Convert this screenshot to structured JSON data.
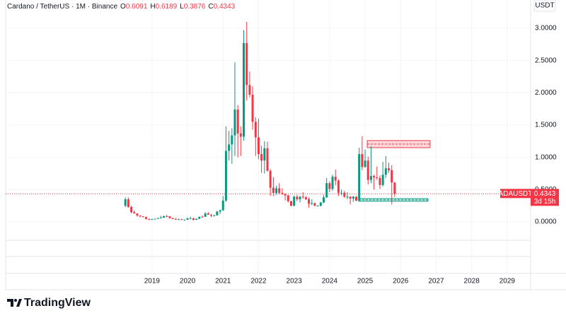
{
  "header": {
    "symbol": "Cardano / TetherUS · 1M · Binance",
    "ohlc": [
      {
        "label": "O",
        "value": 0.6091
      },
      {
        "label": "H",
        "value": 0.6189
      },
      {
        "label": "L",
        "value": 0.3876
      },
      {
        "label": "C",
        "value": 0.4343
      }
    ]
  },
  "currency": "USDT",
  "price_tag": {
    "symbol": "ADAUSDT",
    "value": 0.4343,
    "countdown": "3d 15h"
  },
  "logo": "TradingView",
  "chart_data": {
    "type": "candlestick",
    "up_color": "#089981",
    "down_color": "#f23645",
    "grid": true,
    "xlim": [
      2014.88,
      2029.66
    ],
    "ylim": [
      -0.285,
      3.35
    ],
    "xticks": [
      2019,
      2020,
      2021,
      2022,
      2023,
      2024,
      2025,
      2026,
      2027,
      2028,
      2029
    ],
    "yticks": [
      {
        "value": 0,
        "label": "0.0000"
      },
      {
        "value": 0.5,
        "label": "0.5000"
      },
      {
        "value": 1,
        "label": "1.0000"
      },
      {
        "value": 1.5,
        "label": "1.5000"
      },
      {
        "value": 2,
        "label": "2.0000"
      },
      {
        "value": 2.5,
        "label": "2.5000"
      },
      {
        "value": 3,
        "label": "3.0000"
      }
    ],
    "x": [
      2018.25,
      2018.333,
      2018.417,
      2018.5,
      2018.583,
      2018.667,
      2018.75,
      2018.833,
      2018.917,
      2019,
      2019.083,
      2019.167,
      2019.25,
      2019.333,
      2019.417,
      2019.5,
      2019.583,
      2019.667,
      2019.75,
      2019.833,
      2019.917,
      2020,
      2020.083,
      2020.167,
      2020.25,
      2020.333,
      2020.417,
      2020.5,
      2020.583,
      2020.667,
      2020.75,
      2020.833,
      2020.917,
      2021,
      2021.083,
      2021.167,
      2021.25,
      2021.333,
      2021.417,
      2021.5,
      2021.583,
      2021.667,
      2021.75,
      2021.833,
      2021.917,
      2022,
      2022.083,
      2022.167,
      2022.25,
      2022.333,
      2022.417,
      2022.5,
      2022.583,
      2022.667,
      2022.75,
      2022.833,
      2022.917,
      2023,
      2023.083,
      2023.167,
      2023.25,
      2023.333,
      2023.417,
      2023.5,
      2023.583,
      2023.667,
      2023.75,
      2023.833,
      2023.917,
      2024,
      2024.083,
      2024.167,
      2024.25,
      2024.333,
      2024.417,
      2024.5,
      2024.583,
      2024.667,
      2024.75,
      2024.833,
      2024.917,
      2025,
      2025.083,
      2025.167,
      2025.25,
      2025.333,
      2025.417,
      2025.5,
      2025.583,
      2025.667,
      2025.75,
      2025.833
    ],
    "open": [
      0.25,
      0.35,
      0.23,
      0.15,
      0.13,
      0.1,
      0.086,
      0.074,
      0.044,
      0.042,
      0.043,
      0.048,
      0.059,
      0.065,
      0.088,
      0.087,
      0.058,
      0.045,
      0.04,
      0.04,
      0.033,
      0.033,
      0.054,
      0.055,
      0.032,
      0.049,
      0.08,
      0.079,
      0.13,
      0.11,
      0.1,
      0.1,
      0.16,
      0.18,
      0.33,
      1.1,
      1.2,
      1.34,
      1.74,
      1.37,
      1.32,
      2.77,
      2.12,
      1.97,
      1.55,
      1.31,
      1.05,
      0.95,
      1.14,
      0.79,
      0.53,
      0.45,
      0.52,
      0.45,
      0.43,
      0.41,
      0.32,
      0.25,
      0.39,
      0.35,
      0.39,
      0.38,
      0.35,
      0.28,
      0.29,
      0.25,
      0.25,
      0.3,
      0.38,
      0.6,
      0.51,
      0.7,
      0.64,
      0.45,
      0.45,
      0.39,
      0.39,
      0.36,
      0.39,
      0.33,
      1.05,
      0.85,
      0.95,
      0.65,
      0.71,
      0.69,
      0.68,
      0.57,
      0.73,
      0.83,
      0.8,
      0.6091
    ],
    "high": [
      0.38,
      0.38,
      0.25,
      0.18,
      0.13,
      0.1,
      0.088,
      0.083,
      0.052,
      0.048,
      0.052,
      0.064,
      0.094,
      0.096,
      0.11,
      0.09,
      0.063,
      0.061,
      0.048,
      0.047,
      0.038,
      0.064,
      0.082,
      0.061,
      0.05,
      0.058,
      0.1,
      0.15,
      0.15,
      0.12,
      0.11,
      0.17,
      0.19,
      0.4,
      1.48,
      1.41,
      1.45,
      2.47,
      1.81,
      1.48,
      2.97,
      3.1,
      2.33,
      2.1,
      1.62,
      1.6,
      1.18,
      1.25,
      1.24,
      0.82,
      0.69,
      0.56,
      0.6,
      0.52,
      0.44,
      0.42,
      0.33,
      0.41,
      0.42,
      0.4,
      0.46,
      0.4,
      0.38,
      0.35,
      0.3,
      0.26,
      0.31,
      0.42,
      0.68,
      0.63,
      0.73,
      0.81,
      0.66,
      0.5,
      0.48,
      0.46,
      0.4,
      0.4,
      0.4,
      1.15,
      1.33,
      1.12,
      1.01,
      1.17,
      0.73,
      0.86,
      0.72,
      0.93,
      1.02,
      0.92,
      0.88,
      0.6189
    ],
    "low": [
      0.23,
      0.22,
      0.13,
      0.13,
      0.08,
      0.068,
      0.072,
      0.037,
      0.028,
      0.039,
      0.038,
      0.046,
      0.055,
      0.062,
      0.072,
      0.05,
      0.039,
      0.036,
      0.034,
      0.032,
      0.031,
      0.032,
      0.05,
      0.018,
      0.029,
      0.042,
      0.069,
      0.078,
      0.11,
      0.075,
      0.085,
      0.097,
      0.12,
      0.17,
      0.31,
      0.95,
      0.9,
      1.02,
      1.0,
      1.02,
      1.26,
      1.88,
      1.93,
      1.43,
      1.02,
      0.97,
      0.76,
      0.75,
      0.78,
      0.4,
      0.4,
      0.42,
      0.43,
      0.42,
      0.33,
      0.3,
      0.24,
      0.24,
      0.32,
      0.3,
      0.36,
      0.34,
      0.22,
      0.26,
      0.24,
      0.24,
      0.24,
      0.29,
      0.37,
      0.46,
      0.48,
      0.57,
      0.4,
      0.41,
      0.37,
      0.35,
      0.27,
      0.31,
      0.32,
      0.32,
      0.8,
      0.84,
      0.58,
      0.6,
      0.5,
      0.65,
      0.51,
      0.55,
      0.68,
      0.76,
      0.27,
      0.3876
    ],
    "close": [
      0.35,
      0.23,
      0.15,
      0.13,
      0.1,
      0.086,
      0.074,
      0.044,
      0.042,
      0.043,
      0.048,
      0.059,
      0.065,
      0.088,
      0.087,
      0.058,
      0.045,
      0.04,
      0.04,
      0.033,
      0.033,
      0.054,
      0.055,
      0.032,
      0.049,
      0.08,
      0.079,
      0.13,
      0.11,
      0.1,
      0.1,
      0.16,
      0.18,
      0.33,
      1.1,
      1.2,
      1.34,
      1.74,
      1.37,
      1.32,
      2.77,
      2.12,
      1.97,
      1.55,
      1.31,
      1.05,
      0.95,
      1.14,
      0.79,
      0.53,
      0.45,
      0.52,
      0.45,
      0.43,
      0.41,
      0.32,
      0.25,
      0.39,
      0.35,
      0.39,
      0.38,
      0.35,
      0.28,
      0.29,
      0.25,
      0.25,
      0.3,
      0.38,
      0.6,
      0.51,
      0.7,
      0.64,
      0.45,
      0.45,
      0.39,
      0.39,
      0.36,
      0.39,
      0.33,
      1.05,
      0.85,
      0.95,
      0.65,
      0.71,
      0.69,
      0.68,
      0.57,
      0.73,
      0.83,
      0.8,
      0.61,
      0.4343
    ],
    "zones": [
      {
        "xlim": [
          2025.06,
          2026.83
        ],
        "ylim": [
          1.15,
          1.26
        ],
        "color": "#f23645"
      },
      {
        "xlim": [
          2024.82,
          2026.77
        ],
        "ylim": [
          0.32,
          0.36
        ],
        "color": "#089981"
      }
    ]
  }
}
